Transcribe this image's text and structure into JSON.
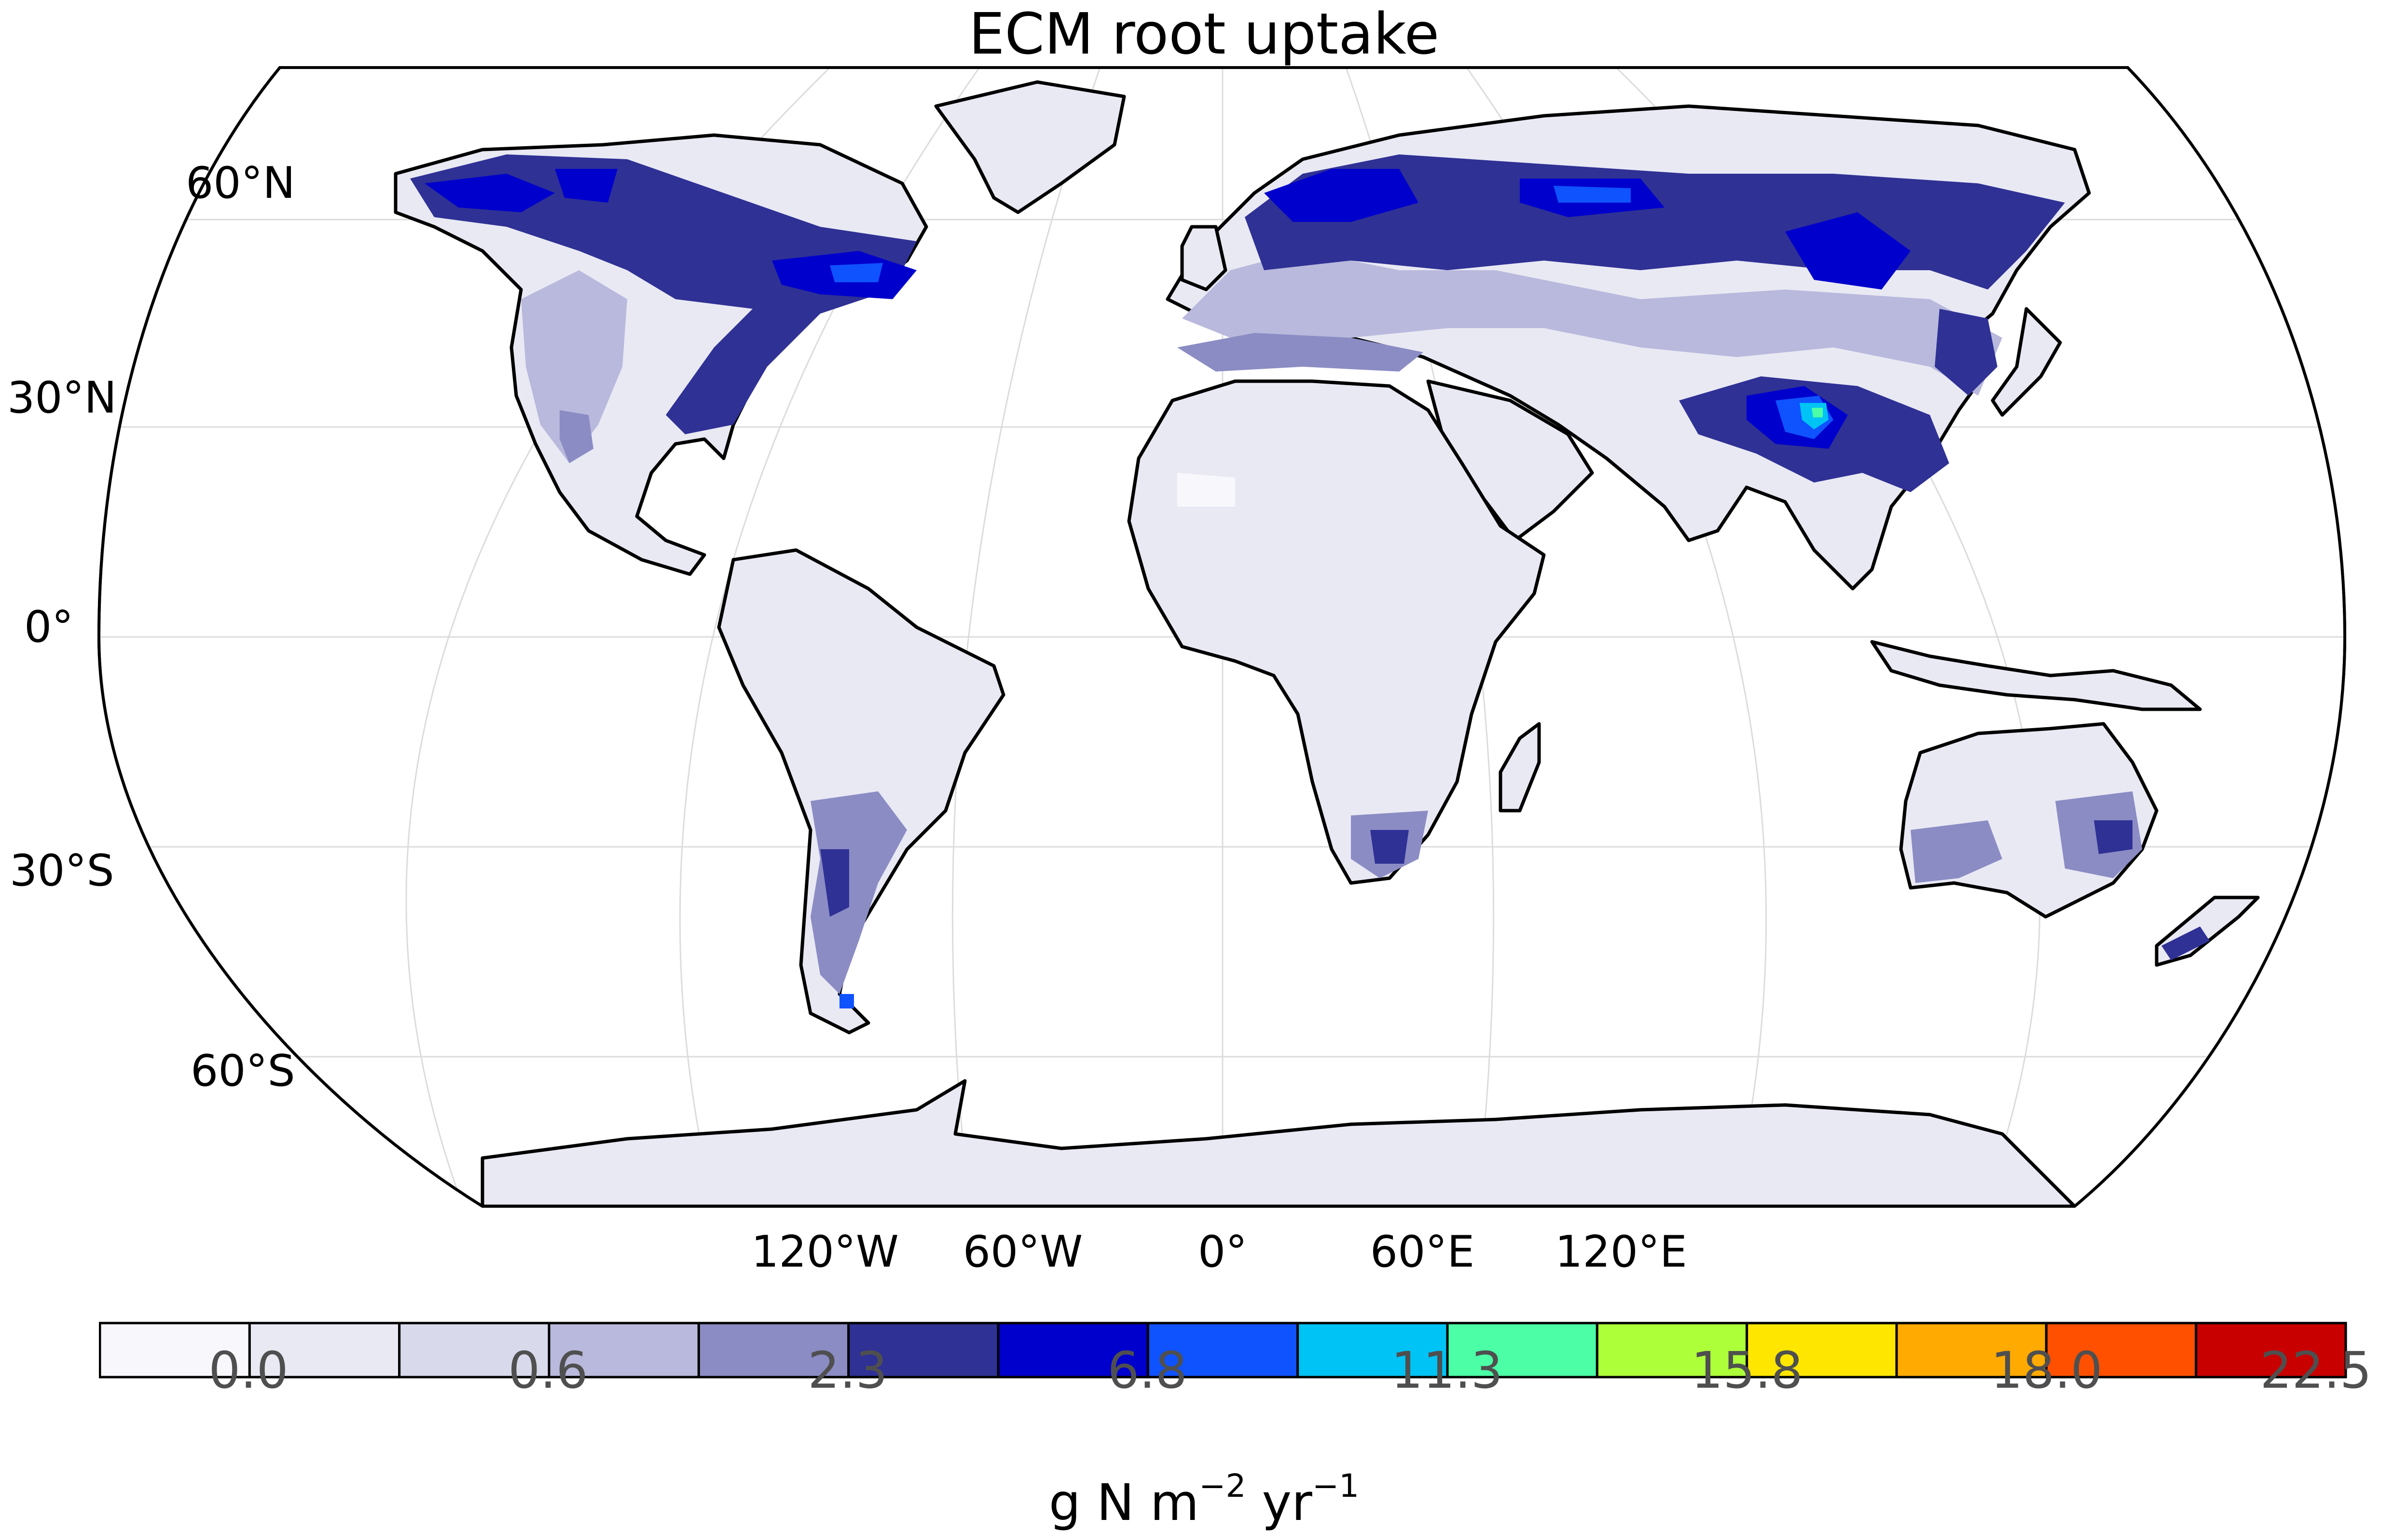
{
  "title": "ECM root uptake",
  "map": {
    "projection": "Robinson",
    "lat_labels": [
      "60°N",
      "30°N",
      "0°",
      "30°S",
      "60°S"
    ],
    "lon_labels": [
      "120°W",
      "60°W",
      "0°",
      "60°E",
      "120°E"
    ],
    "land_fill": "#e9e9f4",
    "ocean_fill": "#ffffff",
    "coastline_color": "#000000",
    "hotspots": [
      {
        "region": "Eastern North America",
        "level": "2.3-6.8"
      },
      {
        "region": "Boreal Canada / Alaska",
        "level": "6.8-9.0"
      },
      {
        "region": "Northern Europe / Siberia",
        "level": "6.8-9.0"
      },
      {
        "region": "Central China",
        "level": "11.3-13.5"
      },
      {
        "region": "Patagonia",
        "level": "2.3-4.5"
      },
      {
        "region": "Southern Africa",
        "level": "2.3-4.5"
      },
      {
        "region": "Eastern Australia",
        "level": "2.3-4.5"
      }
    ]
  },
  "colorbar": {
    "unit_base": "g N m",
    "unit_exp1": "−2",
    "unit_mid": " yr",
    "unit_exp2": "−1",
    "colors": [
      "#f8f8fc",
      "#e9e9f4",
      "#d9d9ec",
      "#b8b9dc",
      "#8b8cc4",
      "#2f3195",
      "#0000cc",
      "#0f52ff",
      "#00c3f5",
      "#4cffa6",
      "#adff3a",
      "#ffe600",
      "#ffaa00",
      "#ff5000",
      "#c80000"
    ],
    "tick_labels": [
      "0.0",
      "0.6",
      "2.3",
      "6.8",
      "11.3",
      "15.8",
      "18.0",
      "22.5"
    ]
  }
}
